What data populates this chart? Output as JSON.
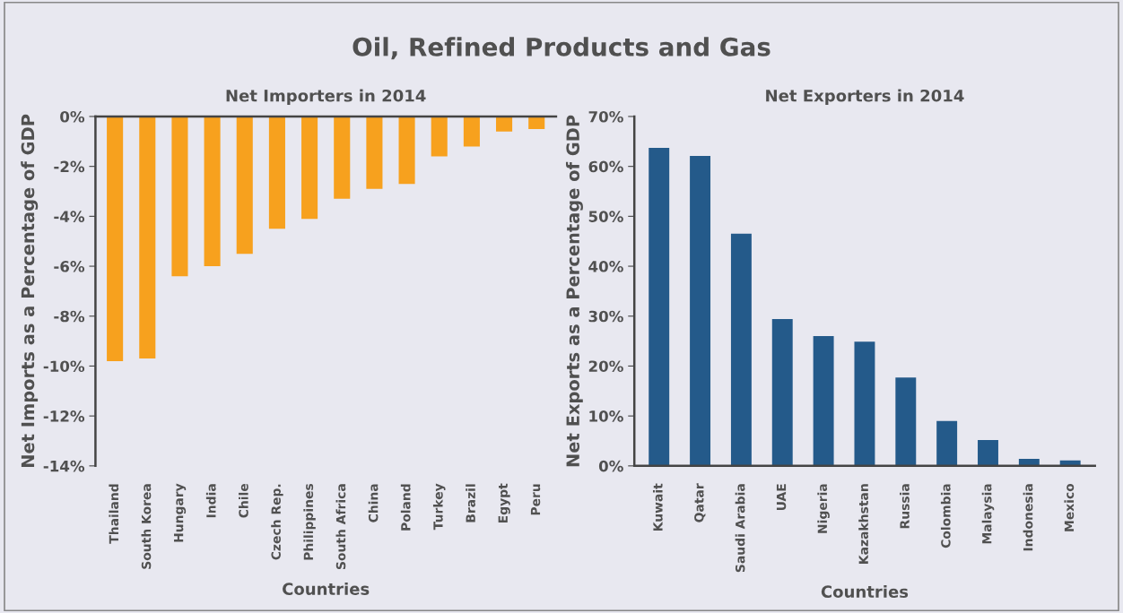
{
  "chart_data": [
    {
      "type": "bar",
      "title": "Net Importers in 2014",
      "xlabel": "Countries",
      "ylabel": "Net Imports as a Percentage of GDP",
      "annotations": [
        "Oil, Refined Products and Gas"
      ],
      "categories": [
        "Thailand",
        "South Korea",
        "Hungary",
        "India",
        "Chile",
        "Czech Rep.",
        "Philippines",
        "South Africa",
        "China",
        "Poland",
        "Turkey",
        "Brazil",
        "Egypt",
        "Peru"
      ],
      "values": [
        -9.8,
        -9.7,
        -6.4,
        -6.0,
        -5.5,
        -4.5,
        -4.1,
        -3.3,
        -2.9,
        -2.7,
        -1.6,
        -1.2,
        -0.6,
        -0.5
      ],
      "color": "#f7a11e",
      "ylim": [
        -14,
        0
      ],
      "yticks": [
        {
          "value": -14,
          "label": "-14%"
        },
        {
          "value": -12,
          "label": "-12%"
        },
        {
          "value": -10,
          "label": "-10%"
        },
        {
          "value": -8,
          "label": "-8%"
        },
        {
          "value": -6,
          "label": "-6%"
        },
        {
          "value": -4,
          "label": "-4%"
        },
        {
          "value": -2,
          "label": "-2%"
        },
        {
          "value": 0,
          "label": "0%"
        }
      ],
      "grid": false,
      "legend": false
    },
    {
      "type": "bar",
      "title": "Net Exporters in 2014",
      "xlabel": "Countries",
      "ylabel": "Net Exports as a Percentage of GDP",
      "categories": [
        "Kuwait",
        "Qatar",
        "Saudi Arabia",
        "UAE",
        "Nigeria",
        "Kazakhstan",
        "Russia",
        "Colombia",
        "Malaysia",
        "Indonesia",
        "Mexico"
      ],
      "values": [
        63.7,
        62.1,
        46.5,
        29.4,
        26.0,
        24.9,
        17.7,
        9.0,
        5.2,
        1.4,
        1.1
      ],
      "color": "#245a8a",
      "ylim": [
        0,
        70
      ],
      "yticks": [
        {
          "value": 0,
          "label": "0%"
        },
        {
          "value": 10,
          "label": "10%"
        },
        {
          "value": 20,
          "label": "20%"
        },
        {
          "value": 30,
          "label": "30%"
        },
        {
          "value": 40,
          "label": "40%"
        },
        {
          "value": 50,
          "label": "50%"
        },
        {
          "value": 60,
          "label": "60%"
        },
        {
          "value": 70,
          "label": "70%"
        }
      ],
      "grid": false,
      "legend": false
    }
  ]
}
